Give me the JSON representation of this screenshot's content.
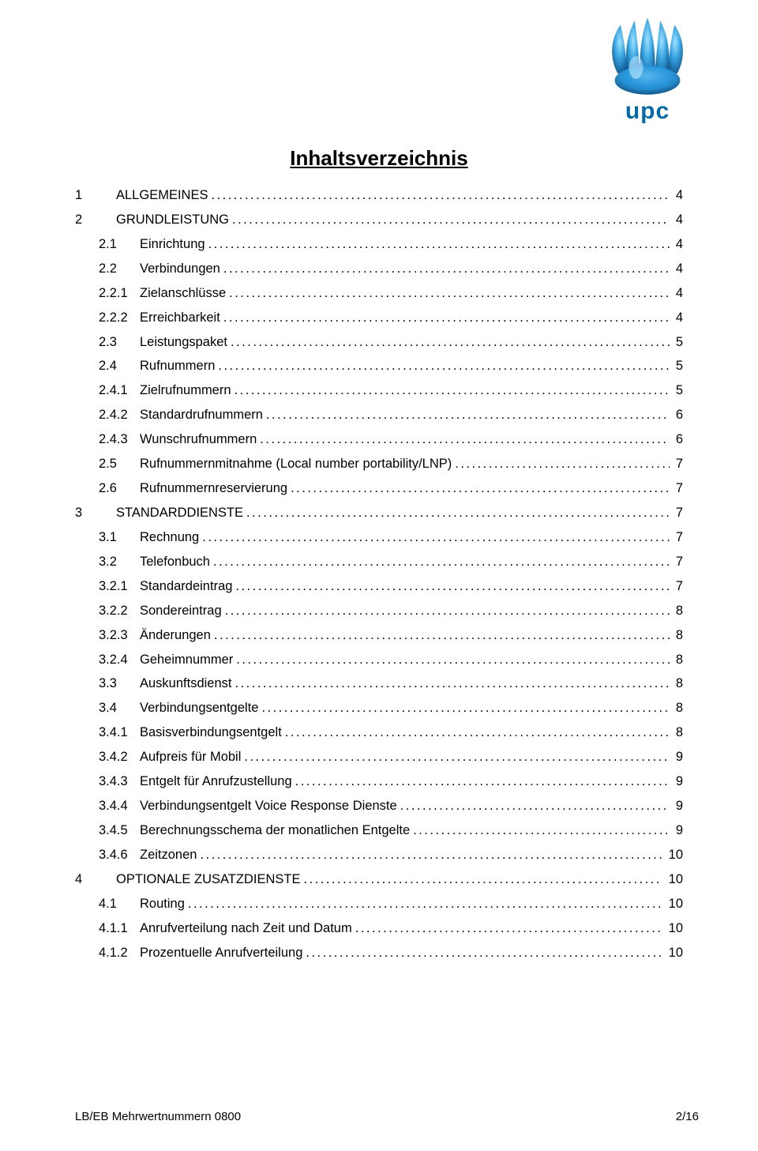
{
  "logo": {
    "word": "upc",
    "brand_color": "#0a6aa8",
    "flame_top": "#5fc6ff",
    "flame_mid": "#1f8fd8",
    "flame_dark": "#0a4e86"
  },
  "title": "Inhaltsverzeichnis",
  "typography": {
    "title_fontsize_pt": 20,
    "body_fontsize_pt": 12
  },
  "entries": [
    {
      "level": 1,
      "num": "1",
      "text": "ALLGEMEINES",
      "page": "4"
    },
    {
      "level": 1,
      "num": "2",
      "text": "GRUNDLEISTUNG",
      "page": "4"
    },
    {
      "level": 2,
      "num": "2.1",
      "text": "Einrichtung",
      "page": "4"
    },
    {
      "level": 2,
      "num": "2.2",
      "text": "Verbindungen",
      "page": "4"
    },
    {
      "level": 3,
      "num": "2.2.1",
      "text": "Zielanschlüsse",
      "page": "4"
    },
    {
      "level": 3,
      "num": "2.2.2",
      "text": "Erreichbarkeit",
      "page": "4"
    },
    {
      "level": 2,
      "num": "2.3",
      "text": "Leistungspaket",
      "page": "5"
    },
    {
      "level": 2,
      "num": "2.4",
      "text": "Rufnummern",
      "page": "5"
    },
    {
      "level": 3,
      "num": "2.4.1",
      "text": "Zielrufnummern",
      "page": "5"
    },
    {
      "level": 3,
      "num": "2.4.2",
      "text": "Standardrufnummern",
      "page": "6"
    },
    {
      "level": 3,
      "num": "2.4.3",
      "text": "Wunschrufnummern",
      "page": "6"
    },
    {
      "level": 2,
      "num": "2.5",
      "text": "Rufnummernmitnahme (Local number portability/LNP)",
      "page": "7"
    },
    {
      "level": 2,
      "num": "2.6",
      "text": "Rufnummernreservierung",
      "page": "7"
    },
    {
      "level": 1,
      "num": "3",
      "text": "STANDARDDIENSTE",
      "page": "7"
    },
    {
      "level": 2,
      "num": "3.1",
      "text": "Rechnung",
      "page": "7"
    },
    {
      "level": 2,
      "num": "3.2",
      "text": "Telefonbuch",
      "page": "7"
    },
    {
      "level": 3,
      "num": "3.2.1",
      "text": "Standardeintrag",
      "page": "7"
    },
    {
      "level": 3,
      "num": "3.2.2",
      "text": "Sondereintrag",
      "page": "8"
    },
    {
      "level": 3,
      "num": "3.2.3",
      "text": "Änderungen",
      "page": "8"
    },
    {
      "level": 3,
      "num": "3.2.4",
      "text": "Geheimnummer",
      "page": "8"
    },
    {
      "level": 2,
      "num": "3.3",
      "text": "Auskunftsdienst",
      "page": "8"
    },
    {
      "level": 2,
      "num": "3.4",
      "text": "Verbindungsentgelte",
      "page": "8"
    },
    {
      "level": 3,
      "num": "3.4.1",
      "text": "Basisverbindungsentgelt",
      "page": "8"
    },
    {
      "level": 3,
      "num": "3.4.2",
      "text": "Aufpreis für Mobil",
      "page": "9"
    },
    {
      "level": 3,
      "num": "3.4.3",
      "text": "Entgelt für Anrufzustellung",
      "page": "9"
    },
    {
      "level": 3,
      "num": "3.4.4",
      "text": "Verbindungsentgelt Voice Response Dienste",
      "page": "9"
    },
    {
      "level": 3,
      "num": "3.4.5",
      "text": "Berechnungsschema der monatlichen Entgelte",
      "page": "9"
    },
    {
      "level": 3,
      "num": "3.4.6",
      "text": "Zeitzonen",
      "page": "10"
    },
    {
      "level": 1,
      "num": "4",
      "text": "OPTIONALE ZUSATZDIENSTE",
      "page": "10"
    },
    {
      "level": 2,
      "num": "4.1",
      "text": "Routing",
      "page": "10"
    },
    {
      "level": 3,
      "num": "4.1.1",
      "text": "Anrufverteilung nach Zeit und Datum",
      "page": "10"
    },
    {
      "level": 3,
      "num": "4.1.2",
      "text": "Prozentuelle Anrufverteilung",
      "page": "10"
    }
  ],
  "footer": {
    "left": "LB/EB Mehrwertnummern 0800",
    "right": "2/16"
  }
}
